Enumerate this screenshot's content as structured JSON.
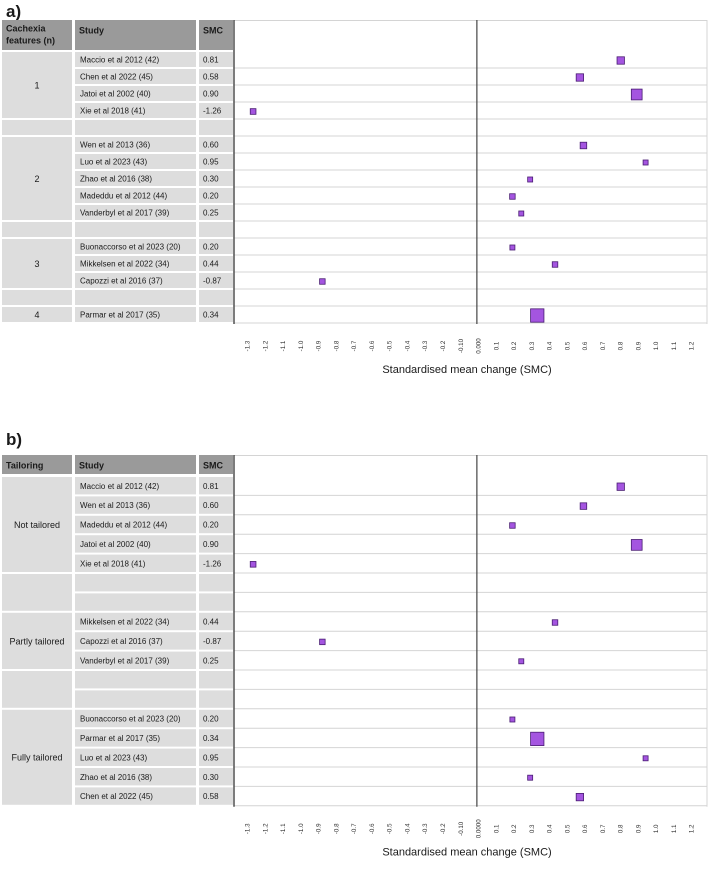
{
  "panels": [
    {
      "label": "a)",
      "headers": {
        "group": "Cachexia features (n)",
        "study": "Study",
        "smc": "SMC"
      },
      "xlabel": "Standardised mean change (SMC)",
      "groups": [
        {
          "label": "1",
          "rows": [
            {
              "study": "Maccio et al 2012 (42)",
              "smc_text": "0.81",
              "smc": 0.81,
              "weight": 2
            },
            {
              "study": "Chen et al 2022 (45)",
              "smc_text": "0.58",
              "smc": 0.58,
              "weight": 2
            },
            {
              "study": "Jatoi et al 2002 (40)",
              "smc_text": "0.90",
              "smc": 0.9,
              "weight": 4
            },
            {
              "study": "Xie et al 2018 (41)",
              "smc_text": "-1.26",
              "smc": -1.26,
              "weight": 1
            }
          ]
        },
        {
          "label": "",
          "rows": [
            null
          ]
        },
        {
          "label": "2",
          "rows": [
            {
              "study": "Wen et al 2013 (36)",
              "smc_text": "0.60",
              "smc": 0.6,
              "weight": 1.5
            },
            {
              "study": "Luo et al 2023 (43)",
              "smc_text": "0.95",
              "smc": 0.95,
              "weight": 0.6
            },
            {
              "study": "Zhao et al 2016 (38)",
              "smc_text": "0.30",
              "smc": 0.3,
              "weight": 0.6
            },
            {
              "study": "Madeddu et al 2012 (44)",
              "smc_text": "0.20",
              "smc": 0.2,
              "weight": 0.9
            },
            {
              "study": "Vanderbyl et al 2017 (39)",
              "smc_text": "0.25",
              "smc": 0.25,
              "weight": 0.6
            }
          ]
        },
        {
          "label": "",
          "rows": [
            null
          ]
        },
        {
          "label": "3",
          "rows": [
            {
              "study": "Buonaccorso et al 2023 (20)",
              "smc_text": "0.20",
              "smc": 0.2,
              "weight": 0.6
            },
            {
              "study": "Mikkelsen et al 2022 (34)",
              "smc_text": "0.44",
              "smc": 0.44,
              "weight": 0.9
            },
            {
              "study": "Capozzi et al 2016 (37)",
              "smc_text": "-0.87",
              "smc": -0.87,
              "weight": 0.9
            }
          ]
        },
        {
          "label": "",
          "rows": [
            null
          ]
        },
        {
          "label": "4",
          "rows": [
            {
              "study": "Parmar et al 2017 (35)",
              "smc_text": "0.34",
              "smc": 0.34,
              "weight": 5.5
            }
          ]
        }
      ],
      "ticks": [
        "-1.3",
        "-1.2",
        "-1.1",
        "-1.0",
        "-0.9",
        "-0.8",
        "-0.7",
        "-0.6",
        "-0.5",
        "-0.4",
        "-0.3",
        "-0.2",
        "-0.10",
        "0.000",
        "0.1",
        "0.2",
        "0.3",
        "0.4",
        "0.5",
        "0.6",
        "0.7",
        "0.8",
        "0.9",
        "1.0",
        "1.1",
        "1.2"
      ]
    },
    {
      "label": "b)",
      "headers": {
        "group": "Tailoring",
        "study": "Study",
        "smc": "SMC"
      },
      "xlabel": "Standardised mean change (SMC)",
      "groups": [
        {
          "label": "Not tailored",
          "rows": [
            {
              "study": "Maccio et al 2012 (42)",
              "smc_text": "0.81",
              "smc": 0.81,
              "weight": 2
            },
            {
              "study": "Wen et al 2013 (36)",
              "smc_text": "0.60",
              "smc": 0.6,
              "weight": 1.5
            },
            {
              "study": "Madeddu et al 2012 (44)",
              "smc_text": "0.20",
              "smc": 0.2,
              "weight": 0.9
            },
            {
              "study": "Jatoi et al 2002 (40)",
              "smc_text": "0.90",
              "smc": 0.9,
              "weight": 4
            },
            {
              "study": "Xie et al 2018 (41)",
              "smc_text": "-1.26",
              "smc": -1.26,
              "weight": 1
            }
          ]
        },
        {
          "label": "",
          "rows": [
            null,
            null
          ]
        },
        {
          "label": "Partly tailored",
          "rows": [
            {
              "study": "Mikkelsen et al 2022 (34)",
              "smc_text": "0.44",
              "smc": 0.44,
              "weight": 0.9
            },
            {
              "study": "Capozzi et al 2016 (37)",
              "smc_text": "-0.87",
              "smc": -0.87,
              "weight": 0.9
            },
            {
              "study": "Vanderbyl et al 2017 (39)",
              "smc_text": "0.25",
              "smc": 0.25,
              "weight": 0.6
            }
          ]
        },
        {
          "label": "",
          "rows": [
            null,
            null
          ]
        },
        {
          "label": "Fully tailored",
          "rows": [
            {
              "study": "Buonaccorso et al 2023 (20)",
              "smc_text": "0.20",
              "smc": 0.2,
              "weight": 0.6
            },
            {
              "study": "Parmar et al 2017 (35)",
              "smc_text": "0.34",
              "smc": 0.34,
              "weight": 5.5
            },
            {
              "study": "Luo et al 2023 (43)",
              "smc_text": "0.95",
              "smc": 0.95,
              "weight": 0.6
            },
            {
              "study": "Zhao et al 2016 (38)",
              "smc_text": "0.30",
              "smc": 0.3,
              "weight": 0.6
            },
            {
              "study": "Chen et al 2022 (45)",
              "smc_text": "0.58",
              "smc": 0.58,
              "weight": 2
            }
          ]
        }
      ],
      "ticks": [
        "-1.3",
        "-1.2",
        "-1.1",
        "-1.0",
        "-0.9",
        "-0.8",
        "-0.7",
        "-0.6",
        "-0.5",
        "-0.4",
        "-0.3",
        "-0.2",
        "-0.10",
        "0.0000",
        "0.1",
        "0.2",
        "0.3",
        "0.4",
        "0.5",
        "0.6",
        "0.7",
        "0.8",
        "0.9",
        "1.0",
        "1.1",
        "1.2"
      ]
    }
  ],
  "chart_data": [
    {
      "type": "forest",
      "title": "a)",
      "xlabel": "Standardised mean change (SMC)",
      "xlim": [
        -1.3,
        1.2
      ],
      "grouping": "Cachexia features (n)",
      "points": [
        {
          "group": "1",
          "study": "Maccio et al 2012 (42)",
          "smc": 0.81
        },
        {
          "group": "1",
          "study": "Chen et al 2022 (45)",
          "smc": 0.58
        },
        {
          "group": "1",
          "study": "Jatoi et al 2002 (40)",
          "smc": 0.9
        },
        {
          "group": "1",
          "study": "Xie et al 2018 (41)",
          "smc": -1.26
        },
        {
          "group": "2",
          "study": "Wen et al 2013 (36)",
          "smc": 0.6
        },
        {
          "group": "2",
          "study": "Luo et al 2023 (43)",
          "smc": 0.95
        },
        {
          "group": "2",
          "study": "Zhao et al 2016 (38)",
          "smc": 0.3
        },
        {
          "group": "2",
          "study": "Madeddu et al 2012 (44)",
          "smc": 0.2
        },
        {
          "group": "2",
          "study": "Vanderbyl et al 2017 (39)",
          "smc": 0.25
        },
        {
          "group": "3",
          "study": "Buonaccorso et al 2023 (20)",
          "smc": 0.2
        },
        {
          "group": "3",
          "study": "Mikkelsen et al 2022 (34)",
          "smc": 0.44
        },
        {
          "group": "3",
          "study": "Capozzi et al 2016 (37)",
          "smc": -0.87
        },
        {
          "group": "4",
          "study": "Parmar et al 2017 (35)",
          "smc": 0.34
        }
      ]
    },
    {
      "type": "forest",
      "title": "b)",
      "xlabel": "Standardised mean change (SMC)",
      "xlim": [
        -1.3,
        1.2
      ],
      "grouping": "Tailoring",
      "points": [
        {
          "group": "Not tailored",
          "study": "Maccio et al 2012 (42)",
          "smc": 0.81
        },
        {
          "group": "Not tailored",
          "study": "Wen et al 2013 (36)",
          "smc": 0.6
        },
        {
          "group": "Not tailored",
          "study": "Madeddu et al 2012 (44)",
          "smc": 0.2
        },
        {
          "group": "Not tailored",
          "study": "Jatoi et al 2002 (40)",
          "smc": 0.9
        },
        {
          "group": "Not tailored",
          "study": "Xie et al 2018 (41)",
          "smc": -1.26
        },
        {
          "group": "Partly tailored",
          "study": "Mikkelsen et al 2022 (34)",
          "smc": 0.44
        },
        {
          "group": "Partly tailored",
          "study": "Capozzi et al 2016 (37)",
          "smc": -0.87
        },
        {
          "group": "Partly tailored",
          "study": "Vanderbyl et al 2017 (39)",
          "smc": 0.25
        },
        {
          "group": "Fully tailored",
          "study": "Buonaccorso et al 2023 (20)",
          "smc": 0.2
        },
        {
          "group": "Fully tailored",
          "study": "Parmar et al 2017 (35)",
          "smc": 0.34
        },
        {
          "group": "Fully tailored",
          "study": "Luo et al 2023 (43)",
          "smc": 0.95
        },
        {
          "group": "Fully tailored",
          "study": "Zhao et al 2016 (38)",
          "smc": 0.3
        },
        {
          "group": "Fully tailored",
          "study": "Chen et al 2022 (45)",
          "smc": 0.58
        }
      ]
    }
  ],
  "colors": {
    "marker_fill": "#a455e0",
    "marker_stroke": "#4a1d73",
    "header_fill": "#9a9a9a",
    "cell_fill": "#dddddd",
    "grid": "#d4d4d4",
    "axis": "#444444"
  }
}
